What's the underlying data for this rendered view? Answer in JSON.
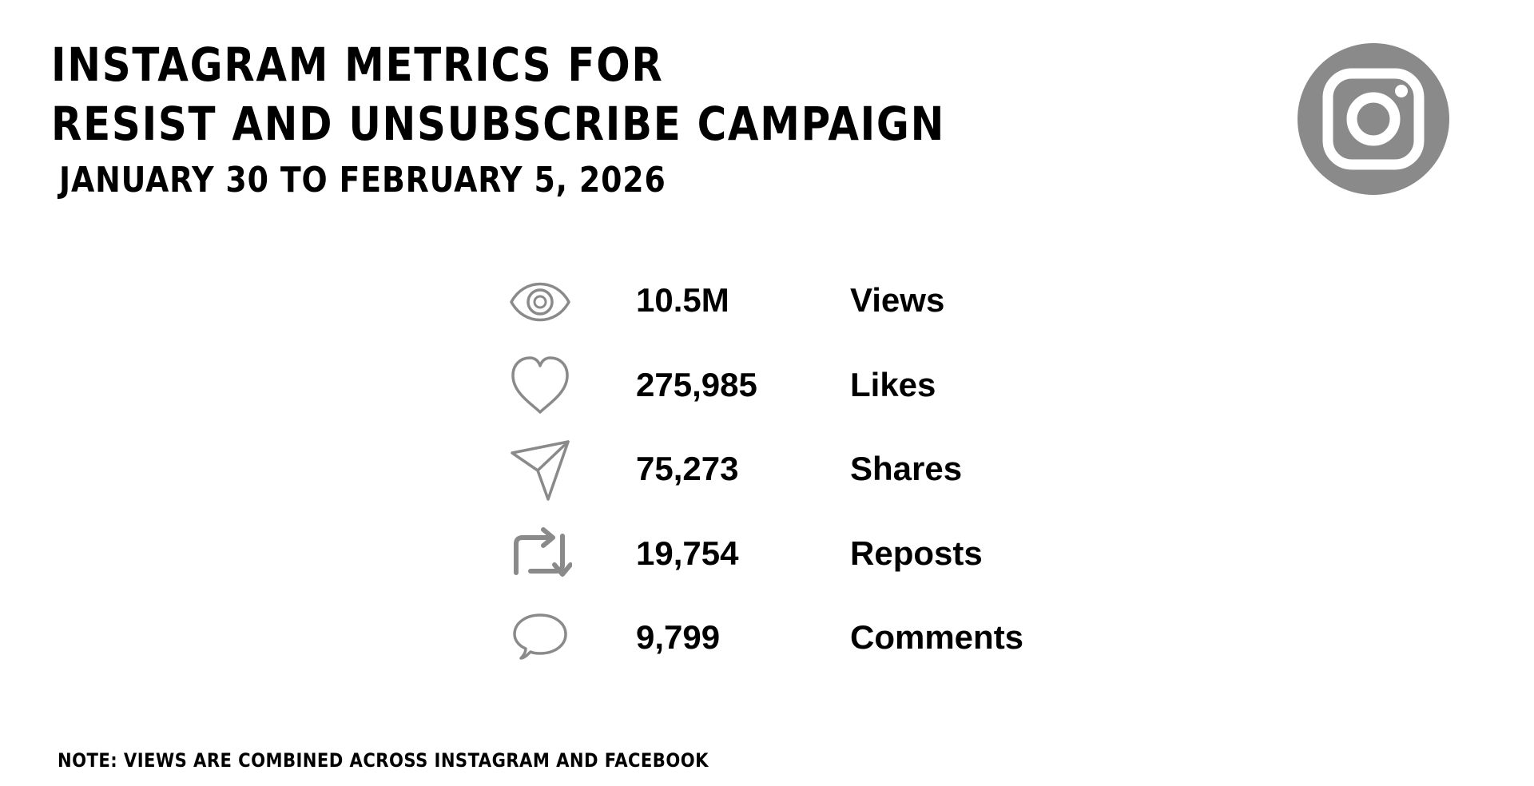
{
  "header": {
    "title_line1": "INSTAGRAM METRICS FOR",
    "title_line2": "RESIST AND UNSUBSCRIBE CAMPAIGN",
    "subtitle": "JANUARY 30 TO FEBRUARY 5, 2026"
  },
  "logo": {
    "icon": "instagram-logo-icon",
    "color": "#8a8a8a"
  },
  "metrics": [
    {
      "icon": "eye-icon",
      "value": "10.5M",
      "label": "Views"
    },
    {
      "icon": "heart-icon",
      "value": "275,985",
      "label": "Likes"
    },
    {
      "icon": "paper-plane-icon",
      "value": "75,273",
      "label": "Shares"
    },
    {
      "icon": "repost-icon",
      "value": "19,754",
      "label": "Reposts"
    },
    {
      "icon": "comment-bubble-icon",
      "value": "9,799",
      "label": "Comments"
    }
  ],
  "footer": {
    "note": "NOTE: VIEWS ARE COMBINED ACROSS INSTAGRAM AND FACEBOOK"
  },
  "colors": {
    "text": "#000000",
    "icon": "#8a8a8a",
    "background": "#ffffff"
  }
}
